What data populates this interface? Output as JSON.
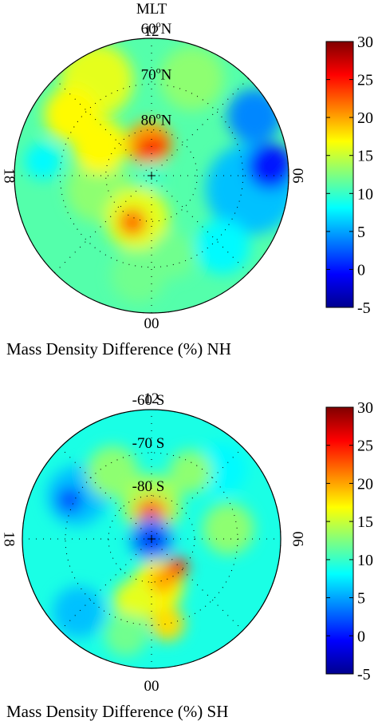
{
  "chart_data": [
    {
      "type": "heatmap",
      "projection": "polar",
      "header": "MLT",
      "caption": "Mass Density Difference (%) NH",
      "mlt_labels": [
        "12",
        "18",
        "00",
        "06"
      ],
      "latitude_rings": [
        {
          "lat": 60,
          "label": "60",
          "suffix": "N"
        },
        {
          "lat": 70,
          "label": "70",
          "suffix": "N"
        },
        {
          "lat": 80,
          "label": "80",
          "suffix": "N"
        }
      ],
      "degree_symbol": "o",
      "colorbar": {
        "min": -5,
        "max": 30,
        "ticks": [
          "30",
          "25",
          "20",
          "15",
          "10",
          "5",
          "0",
          "-5"
        ]
      },
      "background_value": 11,
      "blobs": [
        {
          "value": 6,
          "mlt": 5.5,
          "colat": 22,
          "r": 10
        },
        {
          "value": 0,
          "mlt": 6.3,
          "colat": 26,
          "r": 5
        },
        {
          "value": 4,
          "mlt": 8.0,
          "colat": 26,
          "r": 6
        },
        {
          "value": 8,
          "mlt": 3.0,
          "colat": 22,
          "r": 6
        },
        {
          "value": 13,
          "mlt": 10.5,
          "colat": 23,
          "r": 7
        },
        {
          "value": 16,
          "mlt": 14.0,
          "colat": 24,
          "r": 8
        },
        {
          "value": 17,
          "mlt": 15.5,
          "colat": 22,
          "r": 6
        },
        {
          "value": 13,
          "mlt": 19.0,
          "colat": 12,
          "r": 7
        },
        {
          "value": 17,
          "mlt": 16.0,
          "colat": 13,
          "r": 6
        },
        {
          "value": 20,
          "mlt": 12.3,
          "colat": 7,
          "r": 5
        },
        {
          "value": 26,
          "mlt": 12.4,
          "colat": 6,
          "r": 2.5
        },
        {
          "value": 25,
          "mlt": 11.0,
          "colat": 7,
          "r": 2
        },
        {
          "value": 10,
          "mlt": 0,
          "colat": 0,
          "r": 3
        },
        {
          "value": 16,
          "mlt": 22.8,
          "colat": 10,
          "r": 7
        },
        {
          "value": 22,
          "mlt": 22.5,
          "colat": 11,
          "r": 3
        },
        {
          "value": 12,
          "mlt": 23.5,
          "colat": 22,
          "r": 6
        },
        {
          "value": 12,
          "mlt": 1.0,
          "colat": 18,
          "r": 5
        },
        {
          "value": 8,
          "mlt": 17.5,
          "colat": 24,
          "r": 4
        }
      ]
    },
    {
      "type": "heatmap",
      "projection": "polar",
      "caption": "Mass Density Difference (%) SH",
      "mlt_labels": [
        "12",
        "18",
        "00",
        "06"
      ],
      "latitude_rings": [
        {
          "lat": 60,
          "label": "-60",
          "suffix": "S"
        },
        {
          "lat": 70,
          "label": "-70",
          "suffix": "S"
        },
        {
          "lat": 80,
          "label": "-80",
          "suffix": "S"
        }
      ],
      "degree_symbol": "",
      "colorbar": {
        "min": -5,
        "max": 30,
        "ticks": [
          "30",
          "25",
          "20",
          "15",
          "10",
          "5",
          "0",
          "-5"
        ]
      },
      "background_value": 9,
      "blobs": [
        {
          "value": 6,
          "mlt": 16.0,
          "colat": 20,
          "r": 7
        },
        {
          "value": 2,
          "mlt": 16.3,
          "colat": 21,
          "r": 3
        },
        {
          "value": 6,
          "mlt": 21.0,
          "colat": 24,
          "r": 6
        },
        {
          "value": 8,
          "mlt": 9.0,
          "colat": 23,
          "r": 6
        },
        {
          "value": 13,
          "mlt": 14.0,
          "colat": 18,
          "r": 6
        },
        {
          "value": 13,
          "mlt": 10.0,
          "colat": 18,
          "r": 5
        },
        {
          "value": 13,
          "mlt": 6.5,
          "colat": 18,
          "r": 6
        },
        {
          "value": 14,
          "mlt": 12.0,
          "colat": 8,
          "r": 7
        },
        {
          "value": 20,
          "mlt": 12.0,
          "colat": 6,
          "r": 4
        },
        {
          "value": 26,
          "mlt": 12.2,
          "colat": 6,
          "r": 2
        },
        {
          "value": 4,
          "mlt": 0,
          "colat": 0,
          "r": 5
        },
        {
          "value": -1,
          "mlt": 0,
          "colat": 0,
          "r": 2.5
        },
        {
          "value": 17,
          "mlt": 0.5,
          "colat": 11,
          "r": 6
        },
        {
          "value": 20,
          "mlt": 1.0,
          "colat": 10,
          "r": 3
        },
        {
          "value": 24,
          "mlt": 2.8,
          "colat": 9,
          "r": 2.5
        },
        {
          "value": 16,
          "mlt": 23.0,
          "colat": 15,
          "r": 5
        },
        {
          "value": 18,
          "mlt": 0.7,
          "colat": 20,
          "r": 4
        },
        {
          "value": 12,
          "mlt": 23.0,
          "colat": 23,
          "r": 5
        }
      ]
    }
  ]
}
